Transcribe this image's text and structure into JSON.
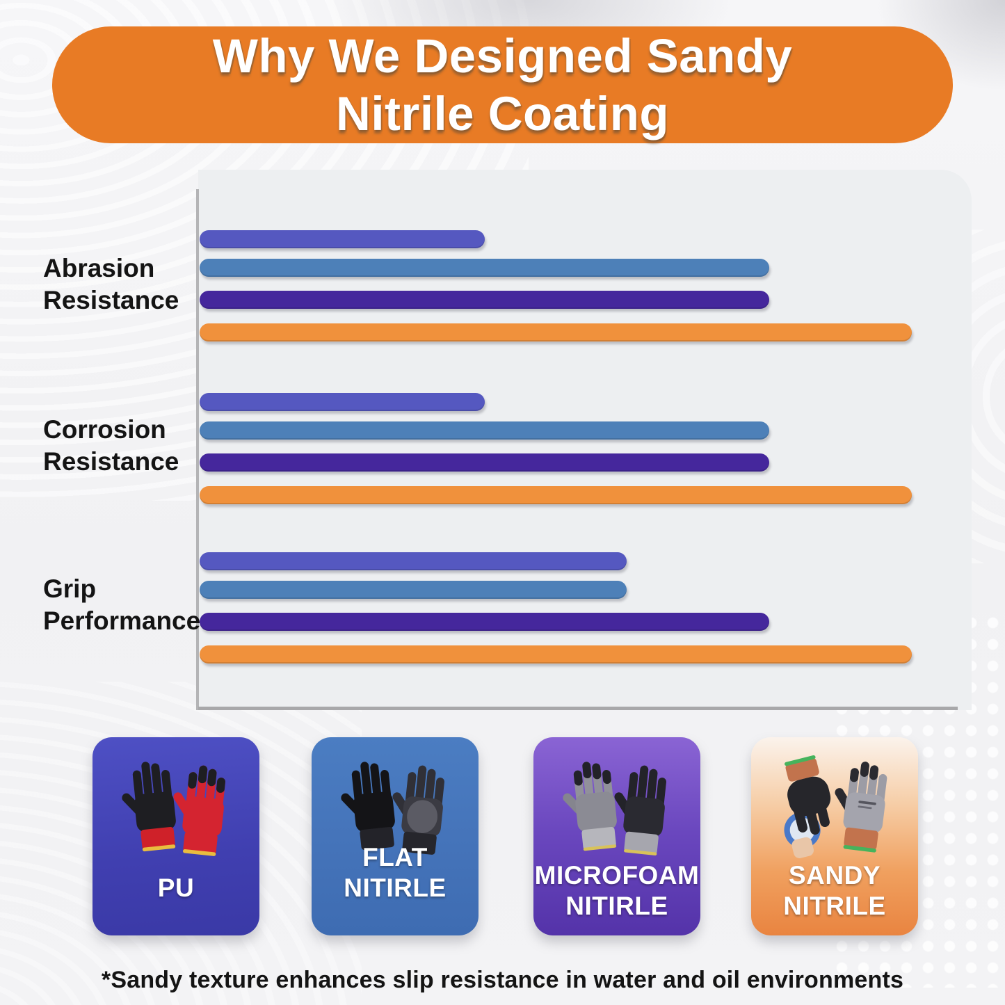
{
  "header": {
    "title_line1": "Why We Designed Sandy",
    "title_line2": "Nitrile Coating",
    "bg_color": "#e87b25",
    "text_color": "#ffffff"
  },
  "chart_data": {
    "type": "bar",
    "orientation": "horizontal",
    "title": "Why We Designed Sandy Nitrile Coating",
    "categories": [
      "Abrasion Resistance",
      "Corrosion Resistance",
      "Grip Performance"
    ],
    "categories_lines": [
      [
        "Abrasion",
        "Resistance"
      ],
      [
        "Corrosion",
        "Resistance"
      ],
      [
        "Grip",
        "Performance"
      ]
    ],
    "series": [
      {
        "name": "PU",
        "color": "#5558c0",
        "values": [
          40,
          40,
          60
        ]
      },
      {
        "name": "Flat Nitrile",
        "color": "#4d80b8",
        "values": [
          80,
          80,
          60
        ]
      },
      {
        "name": "Microfoam Nitrile",
        "color": "#45279c",
        "values": [
          80,
          80,
          80
        ]
      },
      {
        "name": "Sandy Nitrile",
        "color": "#f0913c",
        "values": [
          100,
          100,
          100
        ]
      }
    ],
    "xlim": [
      0,
      100
    ],
    "grid": false,
    "axis_color": "#a8a8aa",
    "legend_position": "bottom-cards"
  },
  "legend_cards": {
    "pu": {
      "line1": "PU",
      "line2": ""
    },
    "flat": {
      "line1": "FLAT NITIRLE",
      "line2": ""
    },
    "microfoam": {
      "line1": "MICROFOAM",
      "line2": "NITIRLE"
    },
    "sandy": {
      "line1": "SANDY",
      "line2": "NITRILE"
    }
  },
  "footnote": "*Sandy texture enhances slip resistance in water and oil environments"
}
